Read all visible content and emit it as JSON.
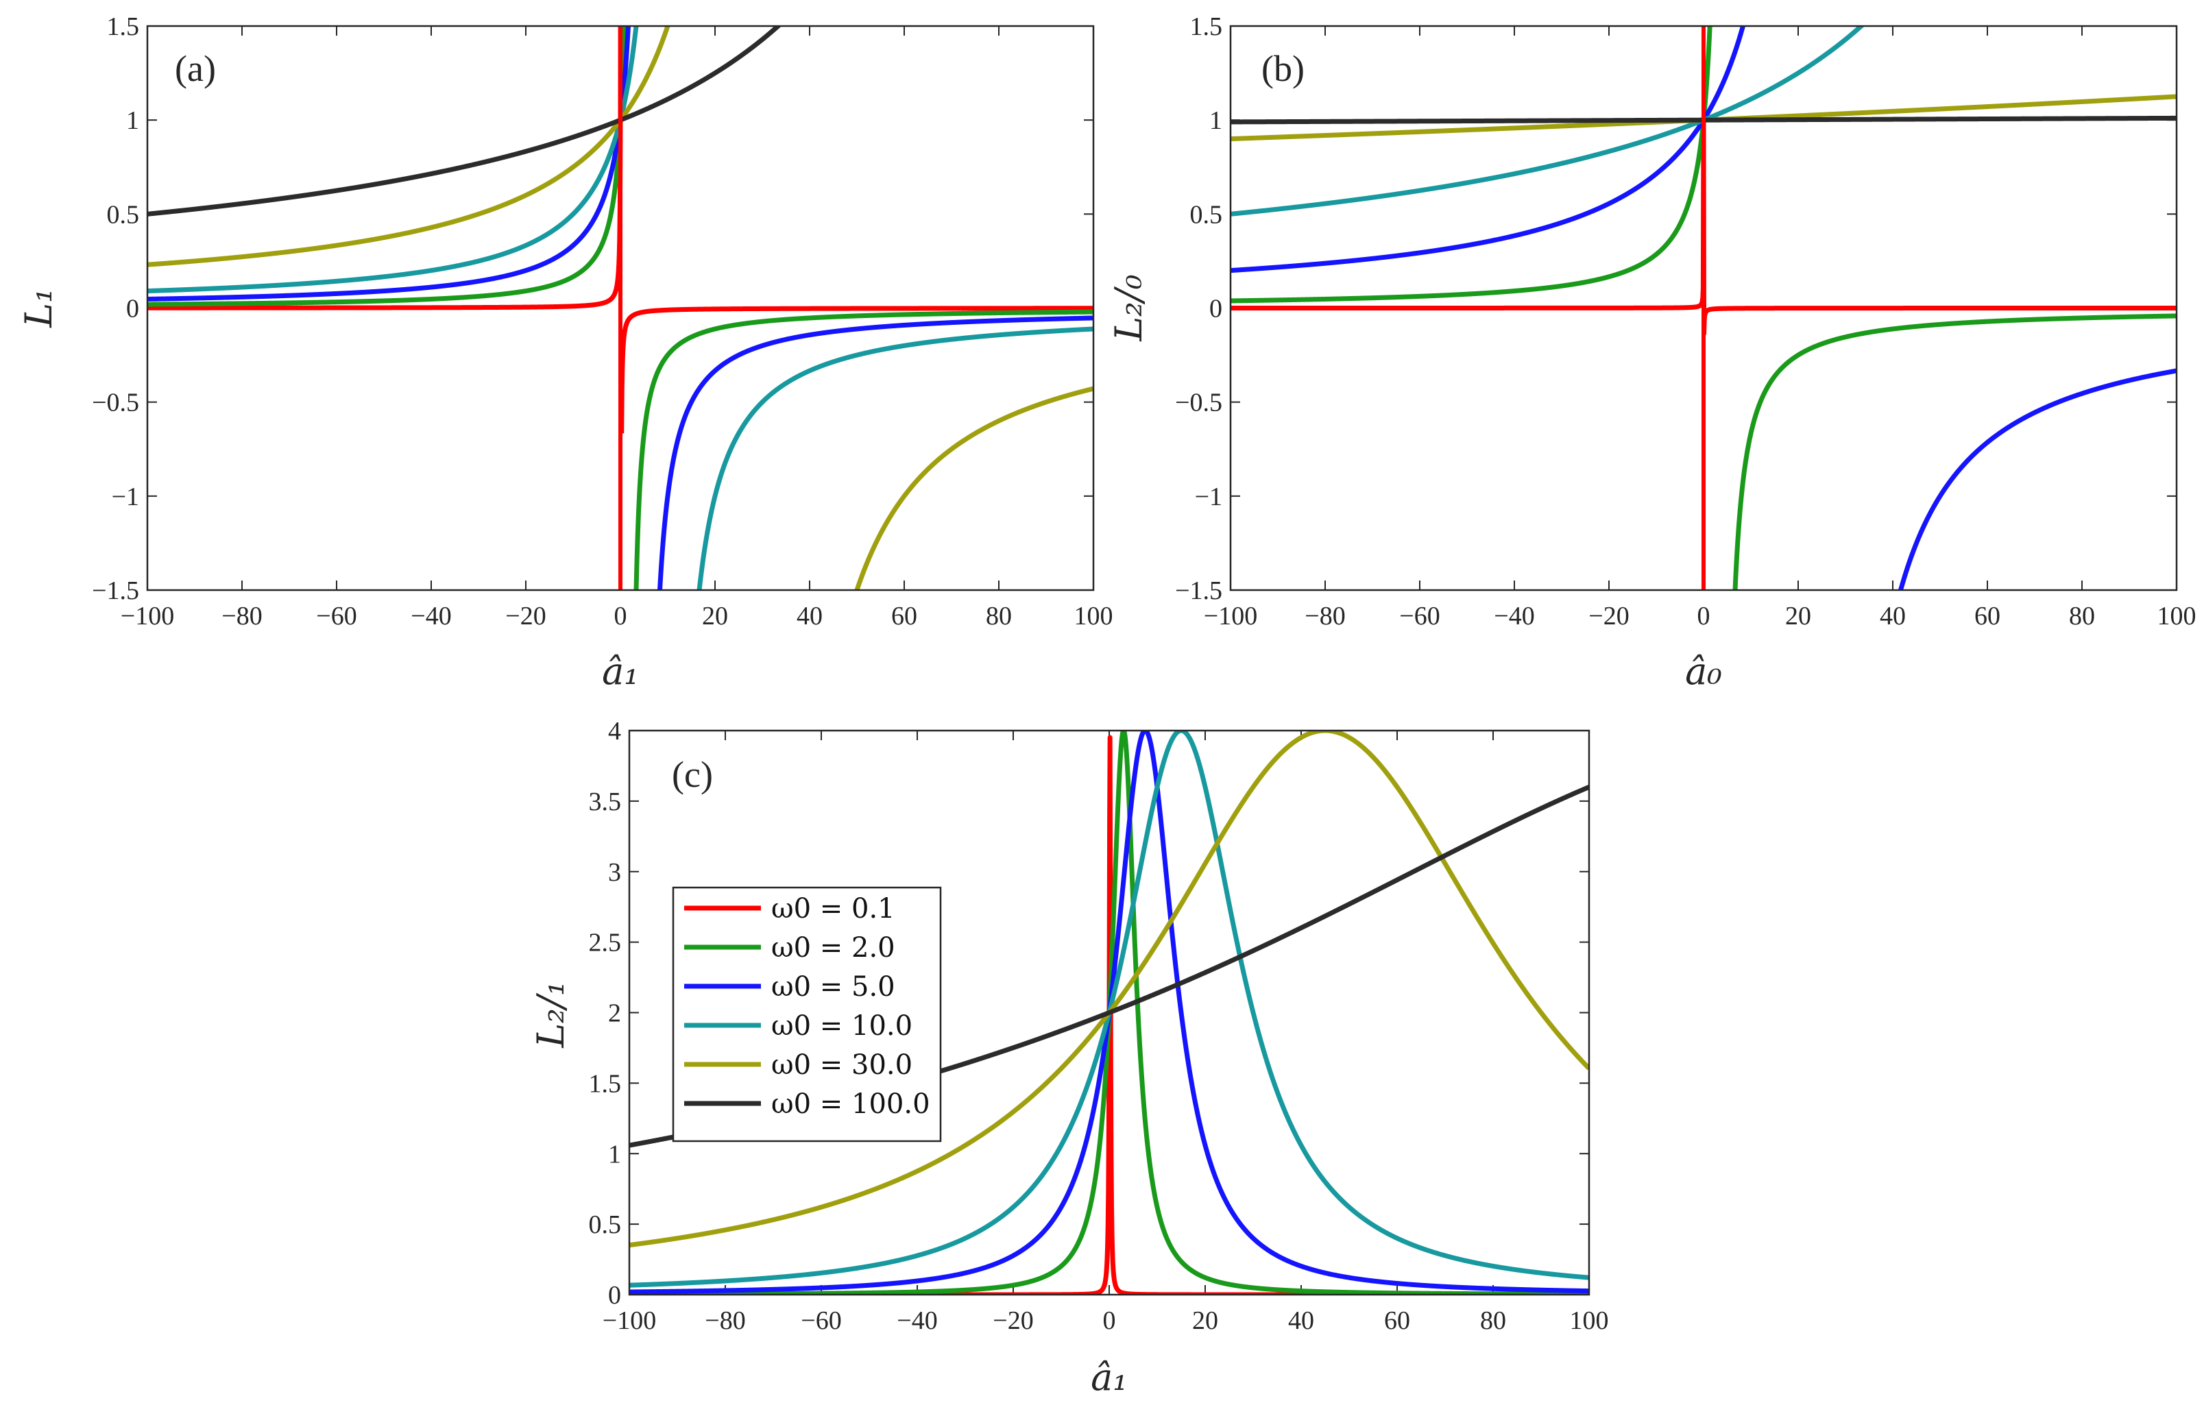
{
  "colors": {
    "w01": "#ff0000",
    "w2": "#1a9a1a",
    "w5": "#1414ff",
    "w10": "#17999f",
    "w30": "#a0a00f",
    "w100": "#2b2b2b"
  },
  "chart_data": [
    {
      "type": "line",
      "panel": "(a)",
      "xlabel": "â₁",
      "ylabel": "L₁",
      "xlim": [
        -100,
        100
      ],
      "ylim": [
        -1.5,
        1.5
      ],
      "xticks": [
        "−100",
        "−80",
        "−60",
        "−40",
        "−20",
        "0",
        "20",
        "40",
        "60",
        "80",
        "100"
      ],
      "yticks": [
        "−1.5",
        "−1",
        "−0.5",
        "0",
        "0.5",
        "1",
        "1.5"
      ],
      "model": "L1 = ω0 / (ω0 − â1)",
      "series": [
        {
          "name": "ω0 = 0.1",
          "omega0": 0.1,
          "color": "w01"
        },
        {
          "name": "ω0 = 2.0",
          "omega0": 2.0,
          "color": "w2"
        },
        {
          "name": "ω0 = 5.0",
          "omega0": 5.0,
          "color": "w5"
        },
        {
          "name": "ω0 = 10.0",
          "omega0": 10.0,
          "color": "w10"
        },
        {
          "name": "ω0 = 30.0",
          "omega0": 30.0,
          "color": "w30"
        },
        {
          "name": "ω0 = 100.0",
          "omega0": 100.0,
          "color": "w100"
        }
      ]
    },
    {
      "type": "line",
      "panel": "(b)",
      "xlabel": "â₀",
      "ylabel": "L₂/₀",
      "xlim": [
        -100,
        100
      ],
      "ylim": [
        -1.5,
        1.5
      ],
      "xticks": [
        "−100",
        "−80",
        "−60",
        "−40",
        "−20",
        "0",
        "20",
        "40",
        "60",
        "80",
        "100"
      ],
      "yticks": [
        "−1.5",
        "−1",
        "−0.5",
        "0",
        "0.5",
        "1",
        "1.5"
      ],
      "model": "L2/0 = ω0² / (ω0² − â0)",
      "series": [
        {
          "name": "ω0 = 0.1",
          "omega0": 0.1,
          "color": "w01"
        },
        {
          "name": "ω0 = 2.0",
          "omega0": 2.0,
          "color": "w2"
        },
        {
          "name": "ω0 = 5.0",
          "omega0": 5.0,
          "color": "w5"
        },
        {
          "name": "ω0 = 10.0",
          "omega0": 10.0,
          "color": "w10"
        },
        {
          "name": "ω0 = 30.0",
          "omega0": 30.0,
          "color": "w30"
        },
        {
          "name": "ω0 = 100.0",
          "omega0": 100.0,
          "color": "w100"
        }
      ]
    },
    {
      "type": "line",
      "panel": "(c)",
      "xlabel": "â₁",
      "ylabel": "L₂/₁",
      "xlim": [
        -100,
        100
      ],
      "ylim": [
        0,
        4
      ],
      "xticks": [
        "−100",
        "−80",
        "−60",
        "−40",
        "−20",
        "0",
        "20",
        "40",
        "60",
        "80",
        "100"
      ],
      "yticks": [
        "0",
        "0.5",
        "1",
        "1.5",
        "2",
        "2.5",
        "3",
        "3.5",
        "4"
      ],
      "model": "L2/1 = 4 / (1 + (â1/(1.5 ω0) − 1)²)",
      "legend_position": "center-left",
      "series": [
        {
          "name": "ω0 = 0.1",
          "label_value": "0.1",
          "omega0": 0.1,
          "color": "w01"
        },
        {
          "name": "ω0 = 2.0",
          "label_value": "2.0",
          "omega0": 2.0,
          "color": "w2"
        },
        {
          "name": "ω0 = 5.0",
          "label_value": "5.0",
          "omega0": 5.0,
          "color": "w5"
        },
        {
          "name": "ω0 = 10.0",
          "label_value": "10.0",
          "omega0": 10.0,
          "color": "w10"
        },
        {
          "name": "ω0 = 30.0",
          "label_value": "30.0",
          "omega0": 30.0,
          "color": "w30"
        },
        {
          "name": "ω0 = 100.0",
          "label_value": "100.0",
          "omega0": 100.0,
          "color": "w100"
        }
      ]
    }
  ]
}
